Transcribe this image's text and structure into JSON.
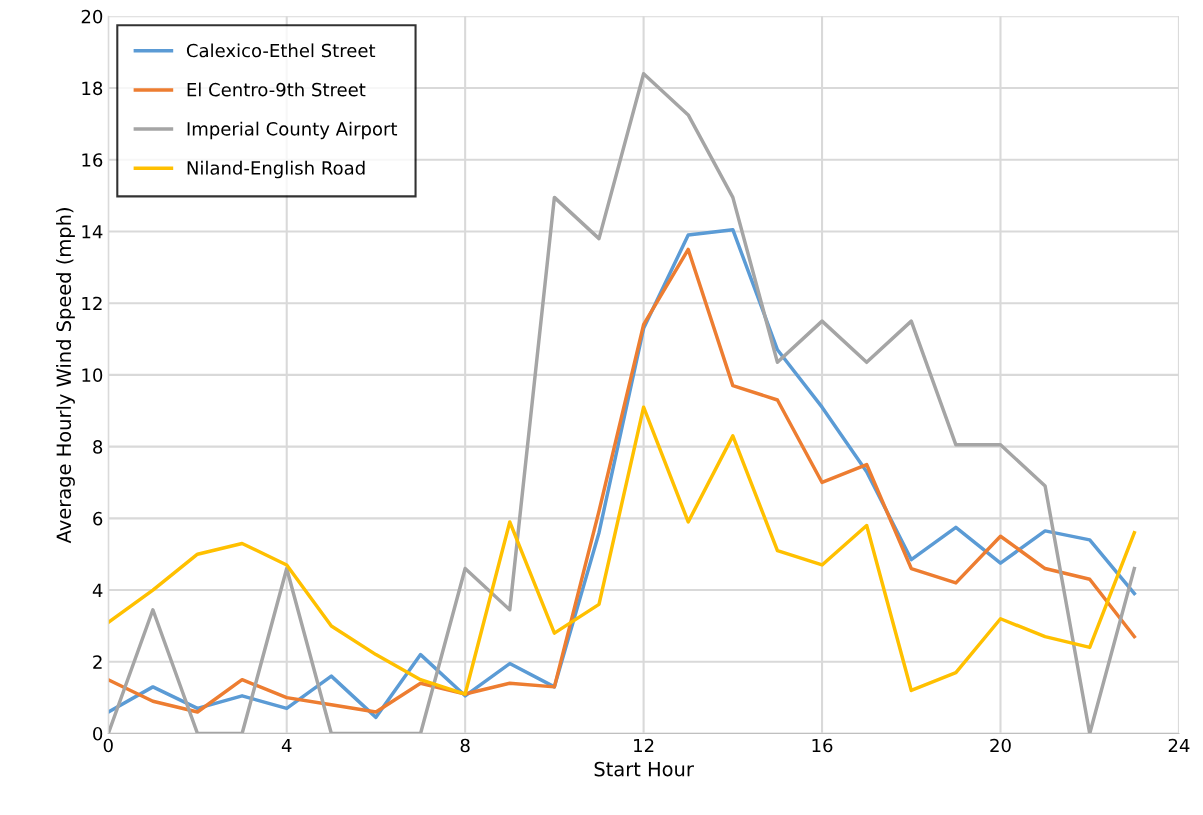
{
  "chart_data": {
    "type": "line",
    "xlabel": "Start Hour",
    "ylabel": "Average Hourly Wind Speed (mph)",
    "x": [
      0,
      1,
      2,
      3,
      4,
      5,
      6,
      7,
      8,
      9,
      10,
      11,
      12,
      13,
      14,
      15,
      16,
      17,
      18,
      19,
      20,
      21,
      22,
      23
    ],
    "xlim": [
      0,
      24
    ],
    "xticks": [
      0,
      4,
      8,
      12,
      16,
      20,
      24
    ],
    "ylim": [
      0,
      20
    ],
    "yticks": [
      0,
      2,
      4,
      6,
      8,
      10,
      12,
      14,
      16,
      18,
      20
    ],
    "grid": true,
    "legend": "top left",
    "marker": "none",
    "line_style": "solid",
    "series": [
      {
        "name": "Calexico-Ethel Street",
        "color": "#5b9bd5",
        "values": [
          0.6,
          1.3,
          0.7,
          1.05,
          0.7,
          1.6,
          0.45,
          2.2,
          1.05,
          1.95,
          1.3,
          5.6,
          11.3,
          13.9,
          14.05,
          10.7,
          9.1,
          7.3,
          4.85,
          5.75,
          4.75,
          5.65,
          5.4,
          3.9
        ]
      },
      {
        "name": "El Centro-9th Street",
        "color": "#ed7d31",
        "values": [
          1.5,
          0.9,
          0.6,
          1.5,
          1.0,
          0.8,
          0.6,
          1.4,
          1.1,
          1.4,
          1.3,
          6.2,
          11.4,
          13.5,
          9.7,
          9.3,
          7.0,
          7.5,
          4.6,
          4.2,
          5.5,
          4.6,
          4.3,
          2.7
        ]
      },
      {
        "name": "Imperial County Airport",
        "color": "#a5a5a5",
        "values": [
          0,
          3.45,
          0,
          0,
          4.6,
          0,
          0,
          0,
          4.6,
          3.45,
          14.95,
          13.8,
          18.4,
          17.25,
          14.95,
          10.35,
          11.5,
          10.35,
          11.5,
          8.05,
          8.05,
          6.9,
          0,
          4.6
        ]
      },
      {
        "name": "Niland-English Road",
        "color": "#ffc000",
        "values": [
          3.1,
          4.0,
          5.0,
          5.3,
          4.7,
          3.0,
          2.2,
          1.5,
          1.1,
          5.9,
          2.8,
          3.6,
          9.1,
          5.9,
          8.3,
          5.1,
          4.7,
          5.8,
          1.2,
          1.7,
          3.2,
          2.7,
          2.4,
          5.6
        ]
      }
    ]
  }
}
